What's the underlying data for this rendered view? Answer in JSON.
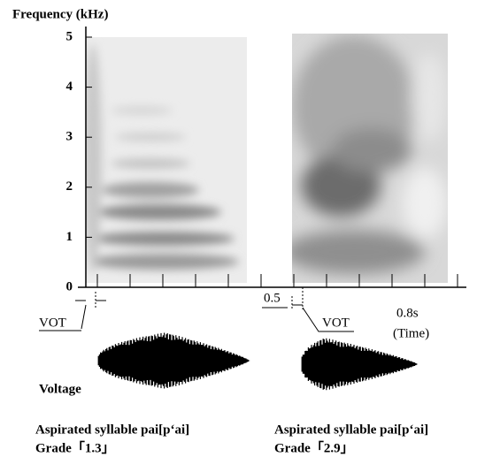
{
  "axis": {
    "title": "Frequency (kHz)",
    "yticks": [
      0,
      1,
      2,
      3,
      4,
      5
    ]
  },
  "time": {
    "mark": "0.5",
    "end": "0.8s",
    "unit": "(Time)"
  },
  "vot_labels": [
    "VOT",
    "VOT"
  ],
  "voltage_label": "Voltage",
  "panels": [
    {
      "caption": "Aspirated syllable pai[p‘ai]",
      "grade": "Grade「1.3」"
    },
    {
      "caption": "Aspirated syllable pai[p‘ai]",
      "grade": "Grade「2.9」"
    }
  ]
}
